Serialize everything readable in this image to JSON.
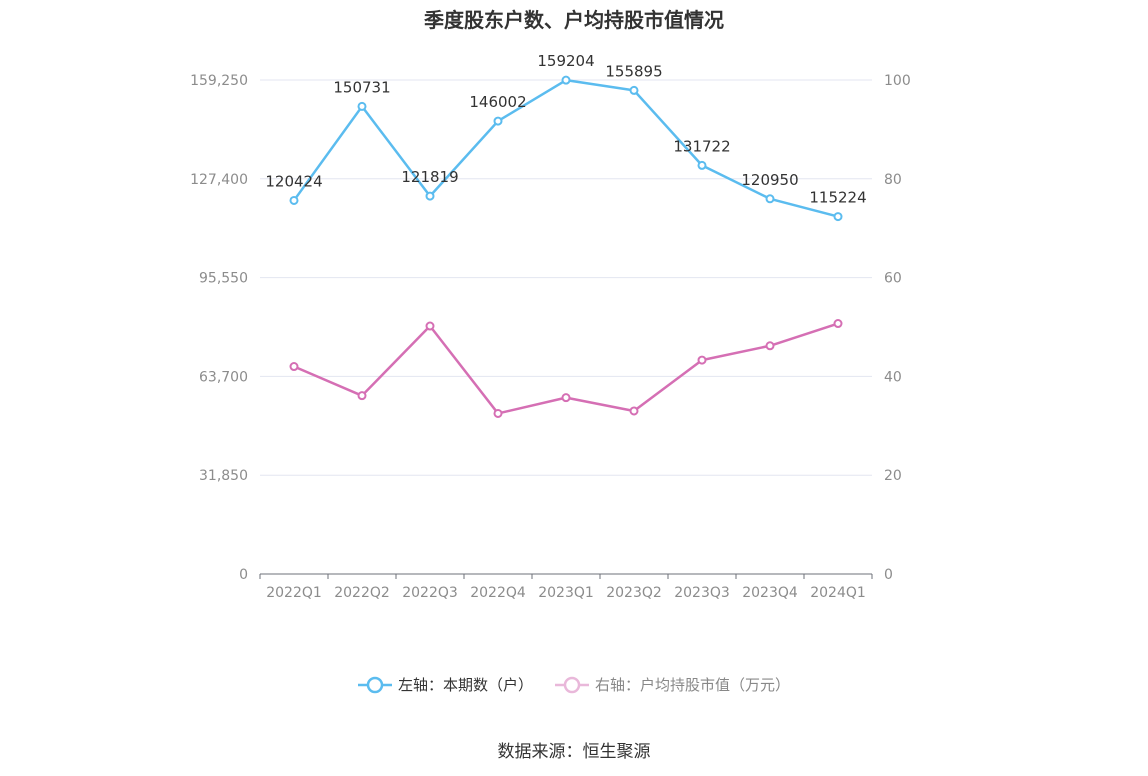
{
  "title": "季度股东户数、户均持股市值情况",
  "legend": {
    "left_label": "左轴：本期数（户）",
    "right_label": "右轴：户均持股市值（万元）"
  },
  "source": "数据来源：恒生聚源",
  "colors": {
    "left_series": "#5bbcef",
    "right_series": "#d56fb4",
    "grid": "#e3e6f0",
    "axis": "#6e7079"
  },
  "chart_data": {
    "type": "line",
    "categories": [
      "2022Q1",
      "2022Q2",
      "2022Q3",
      "2022Q4",
      "2023Q1",
      "2023Q2",
      "2023Q3",
      "2023Q4",
      "2024Q1"
    ],
    "y_left_ticks": [
      "0",
      "31,850",
      "63,700",
      "95,550",
      "127,400",
      "159,250"
    ],
    "y_left_range": [
      0,
      159250
    ],
    "y_right_ticks": [
      "0",
      "20",
      "40",
      "60",
      "80",
      "100"
    ],
    "y_right_range": [
      0,
      100
    ],
    "grid": true,
    "legend_position": "bottom",
    "series": [
      {
        "name": "左轴：本期数（户）",
        "axis": "left",
        "values": [
          120424,
          150731,
          121819,
          146002,
          159204,
          155895,
          131722,
          120950,
          115224
        ],
        "labels": [
          "120424",
          "150731",
          "121819",
          "146002",
          "159204",
          "155895",
          "131722",
          "120950",
          "115224"
        ]
      },
      {
        "name": "右轴：户均持股市值（万元）",
        "axis": "right",
        "values": [
          42.0,
          36.1,
          50.2,
          32.5,
          35.7,
          33.0,
          43.3,
          46.2,
          50.7
        ]
      }
    ]
  }
}
